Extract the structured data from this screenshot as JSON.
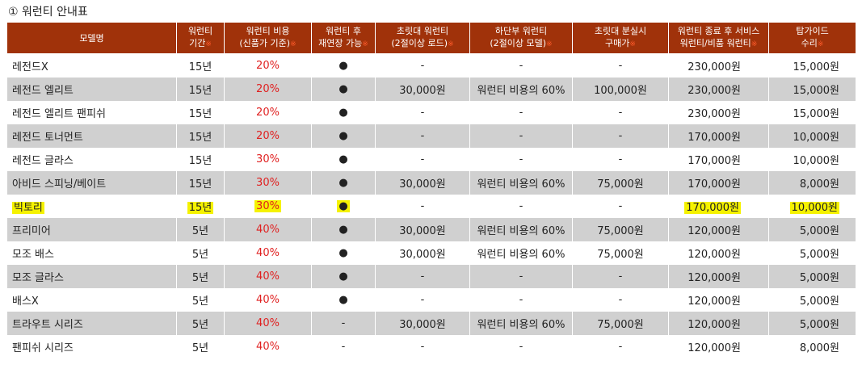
{
  "title": "① 워런티 안내표",
  "headers": [
    {
      "l1": "모델명",
      "l2": "",
      "mark": false
    },
    {
      "l1": "워런티",
      "l2": "기간",
      "mark": true
    },
    {
      "l1": "워런티 비용",
      "l2": "(신품가 기준)",
      "mark": true
    },
    {
      "l1": "워런티 후",
      "l2": "재연장 가능",
      "mark": true
    },
    {
      "l1": "초릿대 워런티",
      "l2": "(2절이상 로드)",
      "mark": true
    },
    {
      "l1": "하단부 워런티",
      "l2": "(2절이상 모델)",
      "mark": true
    },
    {
      "l1": "초릿대 분실시",
      "l2": "구매가",
      "mark": true
    },
    {
      "l1": "워런티 종료 후 서비스",
      "l2": "워런티/비품 워런티",
      "mark": true
    },
    {
      "l1": "탑가이드",
      "l2": "수리",
      "mark": true
    }
  ],
  "header_mark": "※",
  "rows": [
    [
      "레전드X",
      "15년",
      "20%",
      "●",
      "-",
      "-",
      "-",
      "230,000원",
      "15,000원"
    ],
    [
      "레전드 엘리트",
      "15년",
      "20%",
      "●",
      "30,000원",
      "워런티 비용의 60%",
      "100,000원",
      "230,000원",
      "15,000원"
    ],
    [
      "레전드 엘리트 팬피쉬",
      "15년",
      "20%",
      "●",
      "-",
      "-",
      "-",
      "230,000원",
      "15,000원"
    ],
    [
      "레전드 토너먼트",
      "15년",
      "20%",
      "●",
      "-",
      "-",
      "-",
      "170,000원",
      "10,000원"
    ],
    [
      "레전드 글라스",
      "15년",
      "30%",
      "●",
      "-",
      "-",
      "-",
      "170,000원",
      "10,000원"
    ],
    [
      "아비드 스피닝/베이트",
      "15년",
      "30%",
      "●",
      "30,000원",
      "워런티 비용의 60%",
      "75,000원",
      "170,000원",
      "8,000원"
    ],
    [
      "빅토리",
      "15년",
      "30%",
      "●",
      "-",
      "-",
      "-",
      "170,000원",
      "10,000원"
    ],
    [
      "프리미어",
      "5년",
      "40%",
      "●",
      "30,000원",
      "워런티 비용의 60%",
      "75,000원",
      "120,000원",
      "5,000원"
    ],
    [
      "모조 배스",
      "5년",
      "40%",
      "●",
      "30,000원",
      "워런티 비용의 60%",
      "75,000원",
      "120,000원",
      "5,000원"
    ],
    [
      "모조 글라스",
      "5년",
      "40%",
      "●",
      "-",
      "-",
      "-",
      "120,000원",
      "5,000원"
    ],
    [
      "배스X",
      "5년",
      "40%",
      "●",
      "-",
      "-",
      "-",
      "120,000원",
      "5,000원"
    ],
    [
      "트라우트 시리즈",
      "5년",
      "40%",
      "-",
      "30,000원",
      "워런티 비용의 60%",
      "75,000원",
      "120,000원",
      "5,000원"
    ],
    [
      "팬피쉬 시리즈",
      "5년",
      "40%",
      "-",
      "-",
      "-",
      "-",
      "120,000원",
      "8,000원"
    ]
  ],
  "highlighted_row": 6,
  "highlighted_cols": [
    0,
    1,
    2,
    3,
    7,
    8
  ],
  "colors": {
    "header_bg": "#a0320a",
    "stripe": "#d0d0d0",
    "percent": "#e02020",
    "highlight": "#f5f200"
  }
}
